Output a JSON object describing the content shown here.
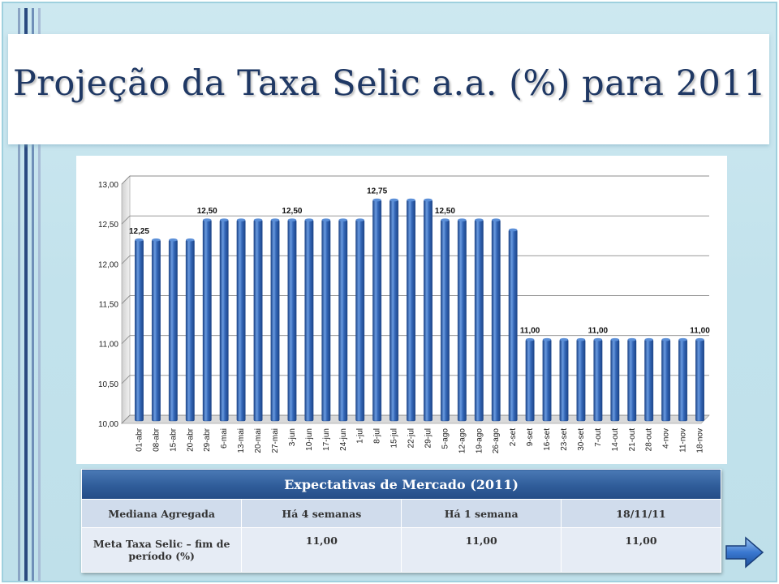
{
  "slide": {
    "title": "Projeção da Taxa Selic a.a. (%) para 2011"
  },
  "chart_data": {
    "type": "bar",
    "title": "",
    "xlabel": "",
    "ylabel": "",
    "ylim": [
      10.0,
      13.0
    ],
    "yticks": [
      "10,00",
      "10,50",
      "11,00",
      "11,50",
      "12,00",
      "12,50",
      "13,00"
    ],
    "grid": true,
    "categories": [
      "01-abr",
      "08-abr",
      "15-abr",
      "20-abr",
      "29-abr",
      "6-mai",
      "13-mai",
      "20-mai",
      "27-mai",
      "3-jun",
      "10-jun",
      "17-jun",
      "24-jun",
      "1-jul",
      "8-jul",
      "15-jul",
      "22-jul",
      "29-jul",
      "5-ago",
      "12-ago",
      "19-ago",
      "26-ago",
      "2-set",
      "9-set",
      "16-set",
      "23-set",
      "30-set",
      "7-out",
      "14-out",
      "21-out",
      "28-out",
      "4-nov",
      "11-nov",
      "18-nov"
    ],
    "values": [
      12.25,
      12.25,
      12.25,
      12.25,
      12.5,
      12.5,
      12.5,
      12.5,
      12.5,
      12.5,
      12.5,
      12.5,
      12.5,
      12.5,
      12.75,
      12.75,
      12.75,
      12.75,
      12.5,
      12.5,
      12.5,
      12.5,
      12.375,
      11.0,
      11.0,
      11.0,
      11.0,
      11.0,
      11.0,
      11.0,
      11.0,
      11.0,
      11.0,
      11.0
    ],
    "data_labels": [
      {
        "index": 0,
        "text": "12,25"
      },
      {
        "index": 4,
        "text": "12,50"
      },
      {
        "index": 9,
        "text": "12,50"
      },
      {
        "index": 14,
        "text": "12,75"
      },
      {
        "index": 18,
        "text": "12,50"
      },
      {
        "index": 23,
        "text": "11,00"
      },
      {
        "index": 27,
        "text": "11,00"
      },
      {
        "index": 33,
        "text": "11,00"
      }
    ],
    "colors": {
      "bar": "#3568b8",
      "bar_light": "#6a9be0",
      "bar_dark": "#1c4488"
    }
  },
  "table": {
    "title": "Expectativas de Mercado (2011)",
    "columns": [
      "Mediana Agregada",
      "Há 4 semanas",
      "Há 1 semana",
      "18/11/11"
    ],
    "rows": [
      {
        "label": "Meta Taxa Selic – fim de período (%)",
        "values": [
          "11,00",
          "11,00",
          "11,00"
        ]
      }
    ]
  },
  "nav": {
    "next_icon": "arrow-right-icon"
  },
  "colors": {
    "title": "#1f3864",
    "slide_background": "#c2e2ec",
    "table_header": "#2f5c99",
    "table_row1": "#d0dcec",
    "table_row2": "#e6ecf5"
  }
}
